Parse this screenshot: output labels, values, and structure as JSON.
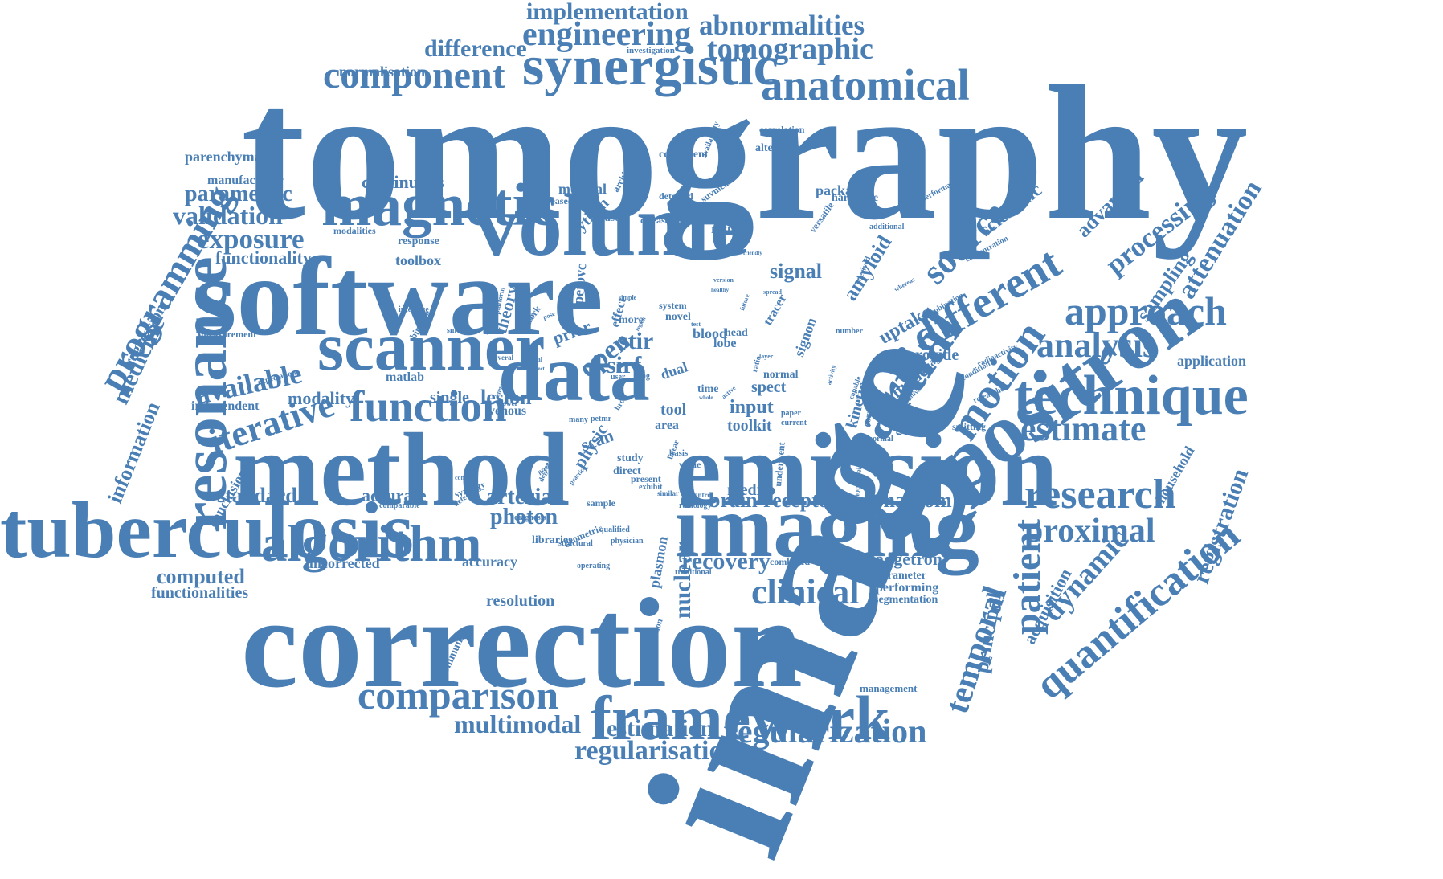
{
  "color": "#4a7fb5",
  "words": [
    {
      "text": "tomography"
    },
    {
      "text": "image"
    },
    {
      "text": "software"
    },
    {
      "text": "correction"
    },
    {
      "text": "method"
    },
    {
      "text": "emission"
    },
    {
      "text": "tuberculosis"
    },
    {
      "text": "imaging"
    },
    {
      "text": "volume"
    },
    {
      "text": "positron"
    },
    {
      "text": "data"
    },
    {
      "text": "scanner"
    },
    {
      "text": "synergistic"
    },
    {
      "text": "magnetic"
    },
    {
      "text": "resonance"
    },
    {
      "text": "technique"
    },
    {
      "text": "partial"
    },
    {
      "text": "framework"
    },
    {
      "text": "algorithm"
    },
    {
      "text": "function"
    },
    {
      "text": "anatomical"
    },
    {
      "text": "component"
    },
    {
      "text": "engineering"
    },
    {
      "text": "implementation"
    },
    {
      "text": "abnormalities"
    },
    {
      "text": "tomographic"
    },
    {
      "text": "difference"
    },
    {
      "text": "normalisation"
    },
    {
      "text": "investigation"
    },
    {
      "text": "comparison"
    },
    {
      "text": "regularization"
    },
    {
      "text": "regularisation"
    },
    {
      "text": "estimation"
    },
    {
      "text": "multimodal"
    },
    {
      "text": "research"
    },
    {
      "text": "proximal"
    },
    {
      "text": "analysis"
    },
    {
      "text": "approach"
    },
    {
      "text": "estimate"
    },
    {
      "text": "different"
    },
    {
      "text": "source"
    },
    {
      "text": "motion"
    },
    {
      "text": "processing"
    },
    {
      "text": "quantification"
    },
    {
      "text": "registration"
    },
    {
      "text": "dynamic"
    },
    {
      "text": "patient"
    },
    {
      "text": "temporal"
    },
    {
      "text": "programming"
    },
    {
      "text": "medicine"
    },
    {
      "text": "information"
    },
    {
      "text": "regression"
    },
    {
      "text": "iterative"
    },
    {
      "text": "available"
    },
    {
      "text": "exposure"
    },
    {
      "text": "validation"
    },
    {
      "text": "parametric"
    },
    {
      "text": "functionality"
    },
    {
      "text": "continuous"
    },
    {
      "text": "parenchyma"
    },
    {
      "text": "manufacturer"
    },
    {
      "text": "clinical"
    },
    {
      "text": "recovery"
    },
    {
      "text": "nuclear"
    },
    {
      "text": "brain"
    },
    {
      "text": "receptor"
    },
    {
      "text": "phantom"
    },
    {
      "text": "arterial"
    },
    {
      "text": "photon"
    },
    {
      "text": "accurate"
    },
    {
      "text": "standard"
    },
    {
      "text": "computed"
    },
    {
      "text": "functionalities"
    },
    {
      "text": "uncorrected"
    },
    {
      "text": "accuracy"
    },
    {
      "text": "resolution"
    },
    {
      "text": "modality"
    },
    {
      "text": "lesion"
    },
    {
      "text": "single"
    },
    {
      "text": "toolkit"
    },
    {
      "text": "input"
    },
    {
      "text": "spect"
    },
    {
      "text": "signal"
    },
    {
      "text": "amyloid"
    },
    {
      "text": "uptake"
    },
    {
      "text": "provide"
    },
    {
      "text": "model"
    },
    {
      "text": "kinetic"
    },
    {
      "text": "attenuation"
    },
    {
      "text": "sampling"
    },
    {
      "text": "advanced"
    },
    {
      "text": "scientific"
    },
    {
      "text": "application"
    },
    {
      "text": "household"
    },
    {
      "text": "acquisition"
    },
    {
      "text": "principal"
    },
    {
      "text": "gadgetron"
    },
    {
      "text": "parameter"
    },
    {
      "text": "performing"
    },
    {
      "text": "segmentation"
    },
    {
      "text": "management"
    },
    {
      "text": "community"
    },
    {
      "text": "distribution"
    },
    {
      "text": "plasmon"
    },
    {
      "text": "mediso"
    },
    {
      "text": "study"
    },
    {
      "text": "direct"
    },
    {
      "text": "present"
    },
    {
      "text": "exhibit"
    },
    {
      "text": "open"
    },
    {
      "text": "sirf"
    },
    {
      "text": "stir"
    },
    {
      "text": "tool"
    },
    {
      "text": "area"
    },
    {
      "text": "dual"
    },
    {
      "text": "scan"
    },
    {
      "text": "physic"
    },
    {
      "text": "theory"
    },
    {
      "text": "prior"
    },
    {
      "text": "petpvc"
    },
    {
      "text": "effect"
    },
    {
      "text": "more"
    },
    {
      "text": "toolbox"
    },
    {
      "text": "response"
    },
    {
      "text": "modalities"
    },
    {
      "text": "python"
    },
    {
      "text": "based"
    },
    {
      "text": "disease"
    },
    {
      "text": "studies"
    },
    {
      "text": "result"
    },
    {
      "text": "medical"
    },
    {
      "text": "increased"
    },
    {
      "text": "detected"
    },
    {
      "text": "coefficient"
    },
    {
      "text": "architecture"
    },
    {
      "text": "availability"
    },
    {
      "text": "suvmean"
    },
    {
      "text": "package"
    },
    {
      "text": "hardware"
    },
    {
      "text": "versatile"
    },
    {
      "text": "alternative"
    },
    {
      "text": "correlation"
    },
    {
      "text": "performance"
    },
    {
      "text": "matlab"
    },
    {
      "text": "venous"
    },
    {
      "text": "independent"
    },
    {
      "text": "conclusion"
    },
    {
      "text": "measurement"
    },
    {
      "text": "interface"
    },
    {
      "text": "binding"
    },
    {
      "text": "smooth"
    },
    {
      "text": "potential"
    },
    {
      "text": "platform"
    },
    {
      "text": "expectation"
    },
    {
      "text": "blood"
    },
    {
      "text": "head"
    },
    {
      "text": "lobe"
    },
    {
      "text": "normal"
    },
    {
      "text": "time"
    },
    {
      "text": "tracer"
    },
    {
      "text": "signon"
    },
    {
      "text": "concentration"
    },
    {
      "text": "additional"
    },
    {
      "text": "derived"
    },
    {
      "text": "number"
    },
    {
      "text": "combination"
    },
    {
      "text": "whereas"
    },
    {
      "text": "language"
    },
    {
      "text": "contact"
    },
    {
      "text": "condition"
    },
    {
      "text": "radioactivity"
    },
    {
      "text": "splitting"
    },
    {
      "text": "researcher"
    },
    {
      "text": "capable"
    },
    {
      "text": "corrected"
    },
    {
      "text": "activity"
    },
    {
      "text": "abnormal"
    },
    {
      "text": "sensitive"
    },
    {
      "text": "paper"
    },
    {
      "text": "current"
    },
    {
      "text": "underwent"
    },
    {
      "text": "hounsfield"
    },
    {
      "text": "combined"
    },
    {
      "text": "traditional"
    },
    {
      "text": "control"
    },
    {
      "text": "radiology"
    },
    {
      "text": "linear"
    },
    {
      "text": "similar"
    },
    {
      "text": "qualified"
    },
    {
      "text": "physician"
    },
    {
      "text": "sample"
    },
    {
      "text": "operating"
    },
    {
      "text": "geometric"
    },
    {
      "text": "structural"
    },
    {
      "text": "libraries"
    },
    {
      "text": "diagnosis"
    },
    {
      "text": "comparable"
    },
    {
      "text": "detection"
    },
    {
      "text": "synergy"
    },
    {
      "text": "concept"
    },
    {
      "text": "immune"
    },
    {
      "text": "lower"
    },
    {
      "text": "many"
    },
    {
      "text": "hrct"
    },
    {
      "text": "petmr"
    },
    {
      "text": "basis"
    },
    {
      "text": "value"
    },
    {
      "text": "system"
    },
    {
      "text": "novel"
    },
    {
      "text": "user"
    },
    {
      "text": "lung"
    },
    {
      "text": "several"
    },
    {
      "text": "work"
    },
    {
      "text": "pose"
    },
    {
      "text": "simple"
    },
    {
      "text": "region"
    },
    {
      "text": "test"
    },
    {
      "text": "regional"
    },
    {
      "text": "friendly"
    },
    {
      "text": "version"
    },
    {
      "text": "healthy"
    },
    {
      "text": "future"
    },
    {
      "text": "spread"
    },
    {
      "text": "layer"
    },
    {
      "text": "ratio"
    },
    {
      "text": "active"
    },
    {
      "text": "whole"
    },
    {
      "text": "visual"
    },
    {
      "text": "detect"
    },
    {
      "text": "degree"
    },
    {
      "text": "practice"
    },
    {
      "text": "proof"
    },
    {
      "text": "reduce"
    }
  ]
}
